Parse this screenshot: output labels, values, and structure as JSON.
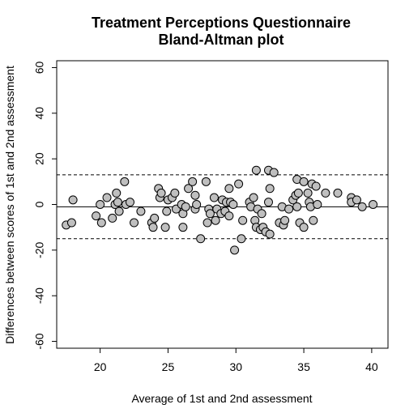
{
  "chart_data": {
    "type": "scatter",
    "title": "Treatment Perceptions Questionnaire",
    "subtitle": "Bland-Altman plot",
    "xlabel": "Average of 1st and 2nd assessment",
    "ylabel": "Differences between scores of 1st and 2nd assessment",
    "xlim": [
      16.8,
      41.2
    ],
    "ylim": [
      -63,
      63
    ],
    "x_ticks": [
      20,
      25,
      30,
      35,
      40
    ],
    "y_ticks": [
      -60,
      -40,
      -20,
      0,
      20,
      40,
      60
    ],
    "mean_difference": -1,
    "upper_limit": 13,
    "lower_limit": -15,
    "grid": false,
    "points": [
      [
        17.5,
        -9
      ],
      [
        17.9,
        -8
      ],
      [
        18.0,
        2
      ],
      [
        19.7,
        -5
      ],
      [
        20.0,
        0
      ],
      [
        20.1,
        -8
      ],
      [
        20.5,
        3
      ],
      [
        20.9,
        -6
      ],
      [
        21.1,
        0
      ],
      [
        21.2,
        5
      ],
      [
        21.3,
        1
      ],
      [
        21.4,
        -3
      ],
      [
        21.8,
        10
      ],
      [
        21.9,
        0
      ],
      [
        22.2,
        1
      ],
      [
        22.5,
        -8
      ],
      [
        23.0,
        -3
      ],
      [
        23.8,
        -8
      ],
      [
        23.9,
        -10
      ],
      [
        24.0,
        -6
      ],
      [
        24.3,
        7
      ],
      [
        24.4,
        3
      ],
      [
        24.5,
        5
      ],
      [
        24.8,
        -10
      ],
      [
        24.9,
        -3
      ],
      [
        25.0,
        2
      ],
      [
        25.3,
        3
      ],
      [
        25.5,
        5
      ],
      [
        25.6,
        -2
      ],
      [
        26.0,
        0
      ],
      [
        26.1,
        -10
      ],
      [
        26.1,
        -4
      ],
      [
        26.3,
        -1
      ],
      [
        26.5,
        7
      ],
      [
        26.8,
        10
      ],
      [
        27.0,
        4
      ],
      [
        27.0,
        -2
      ],
      [
        27.1,
        0
      ],
      [
        27.4,
        -15
      ],
      [
        27.8,
        10
      ],
      [
        27.9,
        -8
      ],
      [
        28.0,
        -2
      ],
      [
        28.1,
        -4
      ],
      [
        28.4,
        3
      ],
      [
        28.5,
        -7
      ],
      [
        28.6,
        -2
      ],
      [
        28.9,
        -4
      ],
      [
        29.0,
        2
      ],
      [
        29.2,
        -3
      ],
      [
        29.3,
        1
      ],
      [
        29.5,
        7
      ],
      [
        29.5,
        -5
      ],
      [
        29.6,
        1
      ],
      [
        29.8,
        0
      ],
      [
        29.9,
        -20
      ],
      [
        30.2,
        9
      ],
      [
        30.4,
        -15
      ],
      [
        30.5,
        -7
      ],
      [
        31.0,
        1
      ],
      [
        31.1,
        -1
      ],
      [
        31.3,
        3
      ],
      [
        31.4,
        -7
      ],
      [
        31.5,
        15
      ],
      [
        31.5,
        -10
      ],
      [
        31.6,
        -2
      ],
      [
        31.8,
        -11
      ],
      [
        31.9,
        -4
      ],
      [
        32.0,
        -10
      ],
      [
        32.2,
        -12
      ],
      [
        32.4,
        15
      ],
      [
        32.4,
        1
      ],
      [
        32.5,
        -13
      ],
      [
        32.5,
        7
      ],
      [
        32.8,
        14
      ],
      [
        33.2,
        -8
      ],
      [
        33.4,
        -1
      ],
      [
        33.5,
        -9
      ],
      [
        33.6,
        -7
      ],
      [
        33.9,
        -2
      ],
      [
        34.2,
        2
      ],
      [
        34.4,
        4
      ],
      [
        34.5,
        11
      ],
      [
        34.5,
        -1
      ],
      [
        34.6,
        5
      ],
      [
        34.7,
        -8
      ],
      [
        35.0,
        10
      ],
      [
        35.0,
        -10
      ],
      [
        35.3,
        5
      ],
      [
        35.4,
        1
      ],
      [
        35.5,
        -1
      ],
      [
        35.6,
        9
      ],
      [
        35.7,
        -7
      ],
      [
        35.9,
        8
      ],
      [
        36.0,
        0
      ],
      [
        36.6,
        5
      ],
      [
        37.5,
        5
      ],
      [
        38.5,
        3
      ],
      [
        38.5,
        1
      ],
      [
        38.9,
        2
      ],
      [
        39.3,
        -1
      ],
      [
        40.1,
        0
      ]
    ]
  },
  "style": {
    "point_fill": "#bfbfbf",
    "point_stroke": "#000000",
    "line_color": "#000000"
  }
}
